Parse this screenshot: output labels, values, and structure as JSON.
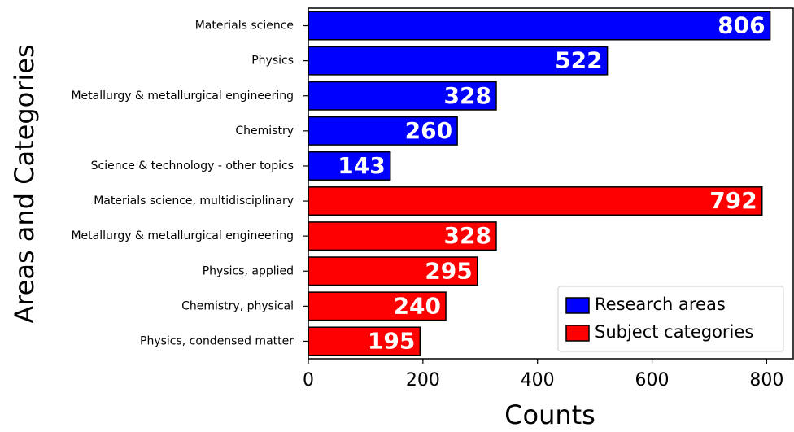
{
  "chart_data": {
    "type": "barh",
    "xlabel": "Counts",
    "ylabel": "Areas and Categories",
    "categories": [
      "Materials science",
      "Physics",
      "Metallurgy & metallurgical engineering",
      "Chemistry",
      "Science & technology - other topics",
      "Materials science, multidisciplinary",
      "Metallurgy & metallurgical engineering",
      "Physics, applied",
      "Chemistry, physical",
      "Physics, condensed matter"
    ],
    "series": [
      {
        "name": "Research areas",
        "color": "#0000ff",
        "values": [
          806,
          522,
          328,
          260,
          143,
          null,
          null,
          null,
          null,
          null
        ]
      },
      {
        "name": "Subject categories",
        "color": "#ff0000",
        "values": [
          null,
          null,
          null,
          null,
          null,
          792,
          328,
          295,
          240,
          195
        ]
      }
    ],
    "xlim": [
      0,
      846.3
    ],
    "xticks": [
      0,
      200,
      400,
      600,
      800
    ],
    "legend": "lower right"
  }
}
